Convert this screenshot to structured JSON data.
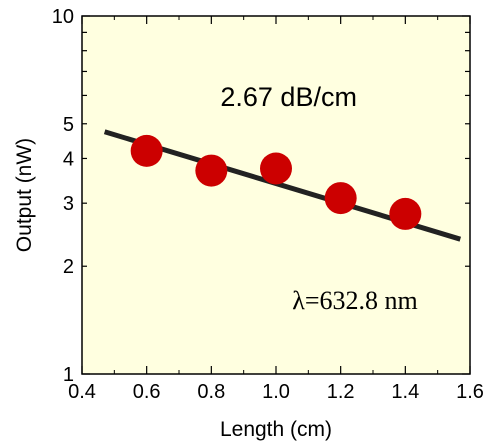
{
  "chart_data": {
    "type": "scatter",
    "title": "",
    "xlabel": "Length (cm)",
    "ylabel": "Output (nW)",
    "xlim": [
      0.4,
      1.6
    ],
    "ylim": [
      1,
      10
    ],
    "yscale": "log",
    "grid": false,
    "x_tick_labels": [
      "0.4",
      "0.6",
      "0.8",
      "1.0",
      "1.2",
      "1.4",
      "1.6"
    ],
    "y_tick_labels": [
      {
        "value": 1,
        "label": "1"
      },
      {
        "value": 2,
        "label": "2"
      },
      {
        "value": 3,
        "label": "3"
      },
      {
        "value": 4,
        "label": "4"
      },
      {
        "value": 5,
        "label": "5"
      },
      {
        "value": 10,
        "label": "10"
      }
    ],
    "series": [
      {
        "type": "scatter",
        "color": "#cc0000",
        "points": [
          {
            "x": 0.6,
            "y": 4.2
          },
          {
            "x": 0.8,
            "y": 3.7
          },
          {
            "x": 1.0,
            "y": 3.75
          },
          {
            "x": 1.2,
            "y": 3.1
          },
          {
            "x": 1.4,
            "y": 2.8
          }
        ]
      },
      {
        "type": "line",
        "color": "#222222",
        "points": [
          {
            "x": 0.47,
            "y": 4.75
          },
          {
            "x": 1.57,
            "y": 2.38
          }
        ]
      }
    ],
    "annotations": [
      {
        "text": "2.67 dB/cm",
        "font": "sans"
      },
      {
        "text": "λ=632.8 nm",
        "font": "serif"
      }
    ],
    "background": "#ffffe0"
  }
}
